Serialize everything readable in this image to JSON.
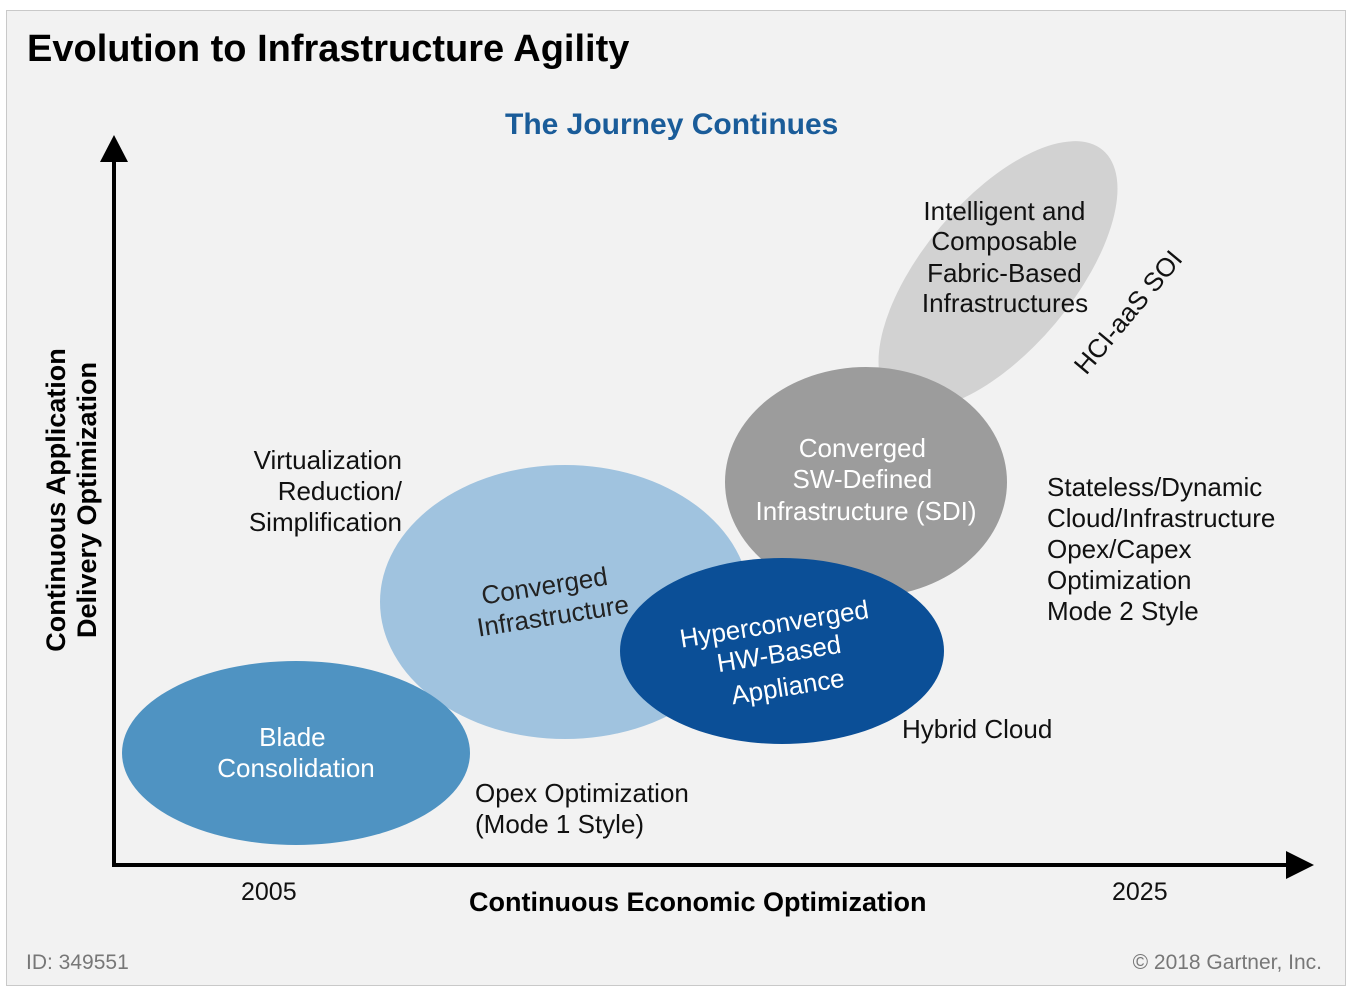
{
  "title": "Evolution to Infrastructure Agility",
  "subtitle": "The Journey Continues",
  "y_axis": {
    "line1": "Continuous Application",
    "line2": "Delivery Optimization"
  },
  "x_axis": {
    "label": "Continuous Economic Optimization",
    "start_year": "2005",
    "end_year": "2025"
  },
  "stages": [
    {
      "lines": [
        "Blade",
        "Consolidation"
      ],
      "color": "#4f93c2",
      "text_color": "#ffffff"
    },
    {
      "lines": [
        "Converged",
        "Infrastructure"
      ],
      "color": "#a0c3df",
      "text_color": "#222222"
    },
    {
      "lines": [
        "Hyperconverged",
        "HW-Based",
        "Appliance"
      ],
      "color": "#0b4f97",
      "text_color": "#ffffff"
    },
    {
      "lines": [
        "Converged",
        "SW-Defined",
        "Infrastructure (SDI)"
      ],
      "color": "#9c9c9c",
      "text_color": "#ffffff"
    },
    {
      "lines": [
        "Intelligent and",
        "Composable",
        "Fabric-Based",
        "Infrastructures"
      ],
      "color": "#d2d2d2",
      "text_color": "#111111"
    }
  ],
  "annotations": {
    "virtualization": [
      "Virtualization",
      "Reduction/",
      "Simplification"
    ],
    "opex": [
      "Opex Optimization",
      "(Mode 1 Style)"
    ],
    "hybrid_cloud": "Hybrid Cloud",
    "stateless": [
      "Stateless/Dynamic",
      "Cloud/Infrastructure",
      "Opex/Capex",
      "Optimization",
      "Mode 2 Style"
    ],
    "hci": "HCI-aaS SOI"
  },
  "footer": {
    "id": "ID: 349551",
    "copyright": "© 2018 Gartner, Inc."
  },
  "colors": {
    "subtitle": "#1a5c99",
    "background": "#f2f2f2"
  }
}
